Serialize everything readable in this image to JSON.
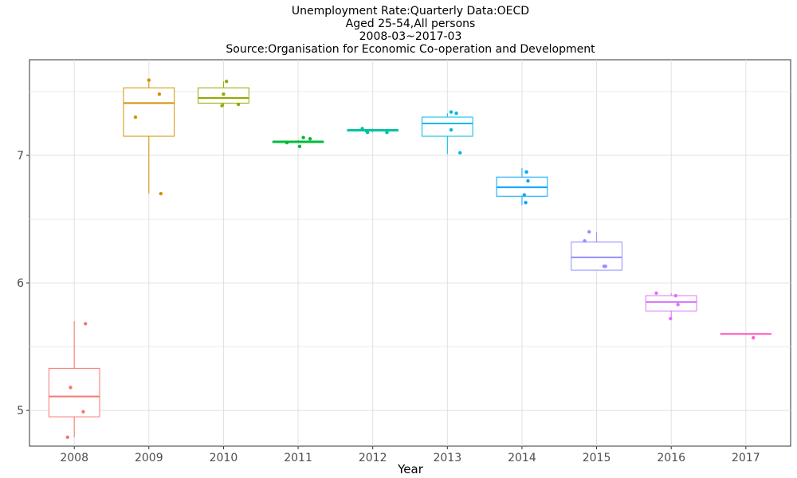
{
  "chart_data": {
    "type": "box",
    "title_lines": [
      "Unemployment Rate:Quarterly Data:OECD",
      "Aged 25-54,All persons",
      "2008-03~2017-03",
      "Source:Organisation for Economic Co-operation and Development"
    ],
    "xlabel": "Year",
    "ylabel": "",
    "ylim": [
      4.72,
      7.75
    ],
    "yticks": [
      5,
      6,
      7
    ],
    "grid": true,
    "legend": "none",
    "categories": [
      "2008",
      "2009",
      "2010",
      "2011",
      "2012",
      "2013",
      "2014",
      "2015",
      "2016",
      "2017"
    ],
    "boxes": [
      {
        "year": "2008",
        "color": "#F8766D",
        "min": 4.79,
        "q1": 4.95,
        "median": 5.11,
        "q3": 5.33,
        "max": 5.7
      },
      {
        "year": "2009",
        "color": "#D39200",
        "min": 6.7,
        "q1": 7.15,
        "median": 7.41,
        "q3": 7.53,
        "max": 7.59
      },
      {
        "year": "2010",
        "color": "#93AA00",
        "min": 7.39,
        "q1": 7.41,
        "median": 7.45,
        "q3": 7.53,
        "max": 7.58
      },
      {
        "year": "2011",
        "color": "#00BA38",
        "min": 7.1,
        "q1": 7.1,
        "median": 7.11,
        "q3": 7.11,
        "max": 7.12
      },
      {
        "year": "2012",
        "color": "#00C19F",
        "min": 7.18,
        "q1": 7.19,
        "median": 7.2,
        "q3": 7.2,
        "max": 7.21
      },
      {
        "year": "2013",
        "color": "#00B9E3",
        "min": 7.01,
        "q1": 7.15,
        "median": 7.25,
        "q3": 7.3,
        "max": 7.33
      },
      {
        "year": "2014",
        "color": "#00A5FF",
        "min": 6.61,
        "q1": 6.68,
        "median": 6.75,
        "q3": 6.83,
        "max": 6.9
      },
      {
        "year": "2015",
        "color": "#9590FF",
        "min": 6.1,
        "q1": 6.1,
        "median": 6.2,
        "q3": 6.32,
        "max": 6.4
      },
      {
        "year": "2016",
        "color": "#DB72FB",
        "min": 5.72,
        "q1": 5.78,
        "median": 5.85,
        "q3": 5.9,
        "max": 5.92
      },
      {
        "year": "2017",
        "color": "#FF61C3",
        "min": 5.6,
        "q1": 5.6,
        "median": 5.6,
        "q3": 5.6,
        "max": 5.6
      }
    ],
    "points": [
      {
        "year": "2008",
        "jitter": 0.15,
        "value": 5.68
      },
      {
        "year": "2008",
        "jitter": -0.05,
        "value": 5.18
      },
      {
        "year": "2008",
        "jitter": 0.12,
        "value": 4.99
      },
      {
        "year": "2008",
        "jitter": -0.09,
        "value": 4.79
      },
      {
        "year": "2009",
        "jitter": 0.0,
        "value": 7.59
      },
      {
        "year": "2009",
        "jitter": 0.14,
        "value": 7.48
      },
      {
        "year": "2009",
        "jitter": -0.18,
        "value": 7.3
      },
      {
        "year": "2009",
        "jitter": 0.16,
        "value": 6.7
      },
      {
        "year": "2010",
        "jitter": 0.04,
        "value": 7.58
      },
      {
        "year": "2010",
        "jitter": 0.0,
        "value": 7.48
      },
      {
        "year": "2010",
        "jitter": -0.02,
        "value": 7.39
      },
      {
        "year": "2010",
        "jitter": 0.2,
        "value": 7.4
      },
      {
        "year": "2011",
        "jitter": 0.07,
        "value": 7.14
      },
      {
        "year": "2011",
        "jitter": 0.16,
        "value": 7.13
      },
      {
        "year": "2011",
        "jitter": -0.15,
        "value": 7.1
      },
      {
        "year": "2011",
        "jitter": 0.02,
        "value": 7.07
      },
      {
        "year": "2012",
        "jitter": -0.14,
        "value": 7.21
      },
      {
        "year": "2012",
        "jitter": -0.08,
        "value": 7.19
      },
      {
        "year": "2012",
        "jitter": -0.07,
        "value": 7.18
      },
      {
        "year": "2012",
        "jitter": 0.19,
        "value": 7.18
      },
      {
        "year": "2013",
        "jitter": 0.05,
        "value": 7.34
      },
      {
        "year": "2013",
        "jitter": 0.12,
        "value": 7.33
      },
      {
        "year": "2013",
        "jitter": 0.05,
        "value": 7.2
      },
      {
        "year": "2013",
        "jitter": 0.17,
        "value": 7.02
      },
      {
        "year": "2014",
        "jitter": 0.06,
        "value": 6.87
      },
      {
        "year": "2014",
        "jitter": 0.08,
        "value": 6.8
      },
      {
        "year": "2014",
        "jitter": 0.03,
        "value": 6.69
      },
      {
        "year": "2014",
        "jitter": 0.05,
        "value": 6.63
      },
      {
        "year": "2015",
        "jitter": -0.1,
        "value": 6.4
      },
      {
        "year": "2015",
        "jitter": -0.16,
        "value": 6.33
      },
      {
        "year": "2015",
        "jitter": 0.1,
        "value": 6.13
      },
      {
        "year": "2015",
        "jitter": 0.12,
        "value": 6.13
      },
      {
        "year": "2016",
        "jitter": -0.2,
        "value": 5.92
      },
      {
        "year": "2016",
        "jitter": 0.06,
        "value": 5.9
      },
      {
        "year": "2016",
        "jitter": 0.09,
        "value": 5.83
      },
      {
        "year": "2016",
        "jitter": -0.01,
        "value": 5.72
      },
      {
        "year": "2017",
        "jitter": 0.1,
        "value": 5.57
      }
    ]
  }
}
